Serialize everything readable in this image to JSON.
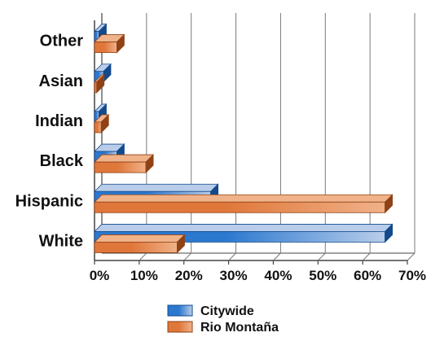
{
  "colors": {
    "citywide": "#2b78cf",
    "citywide_light": "#b9cdea",
    "citywide_dark": "#124a8c",
    "rio": "#e0773a",
    "rio_light": "#f0b289",
    "rio_dark": "#8f4216",
    "grid": "#7a7a7a",
    "axis": "#444444"
  },
  "chart_data": {
    "type": "bar",
    "orientation": "horizontal",
    "three_d": true,
    "categories": [
      "Other",
      "Asian",
      "Indian",
      "Black",
      "Hispanic",
      "White"
    ],
    "series": [
      {
        "name": "Citywide",
        "values": [
          1,
          2,
          1,
          5,
          26,
          65
        ]
      },
      {
        "name": "Rio Montaña",
        "values": [
          5,
          0.5,
          1.5,
          11.5,
          65,
          18.5
        ]
      }
    ],
    "xlim": [
      0,
      70
    ],
    "ticks": [
      "0%",
      "10%",
      "20%",
      "30%",
      "40%",
      "50%",
      "60%",
      "70%"
    ],
    "grid": true,
    "legend_position": "bottom-center"
  }
}
